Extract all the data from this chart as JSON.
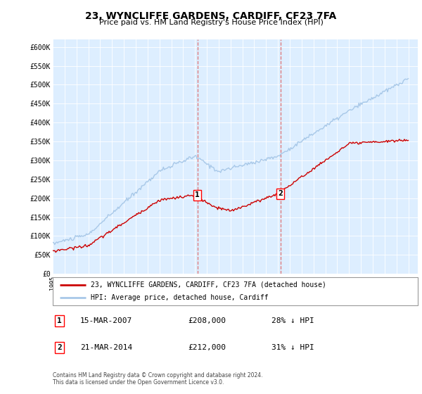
{
  "title": "23, WYNCLIFFE GARDENS, CARDIFF, CF23 7FA",
  "subtitle": "Price paid vs. HM Land Registry's House Price Index (HPI)",
  "y_ticks": [
    0,
    50000,
    100000,
    150000,
    200000,
    250000,
    300000,
    350000,
    400000,
    450000,
    500000,
    550000,
    600000
  ],
  "y_labels": [
    "£0",
    "£50K",
    "£100K",
    "£150K",
    "£200K",
    "£250K",
    "£300K",
    "£350K",
    "£400K",
    "£450K",
    "£500K",
    "£550K",
    "£600K"
  ],
  "hpi_color": "#a8c8e8",
  "price_color": "#cc0000",
  "marker1_year": 2007.2,
  "marker1_price": 208000,
  "marker2_year": 2014.2,
  "marker2_price": 212000,
  "vline_color": "#dd6666",
  "legend_entries": [
    "23, WYNCLIFFE GARDENS, CARDIFF, CF23 7FA (detached house)",
    "HPI: Average price, detached house, Cardiff"
  ],
  "transaction1": {
    "num": "1",
    "date": "15-MAR-2007",
    "price": "£208,000",
    "rel": "28% ↓ HPI"
  },
  "transaction2": {
    "num": "2",
    "date": "21-MAR-2014",
    "price": "£212,000",
    "rel": "31% ↓ HPI"
  },
  "footnote1": "Contains HM Land Registry data © Crown copyright and database right 2024.",
  "footnote2": "This data is licensed under the Open Government Licence v3.0.",
  "plot_bg_color": "#ddeeff",
  "fig_bg_color": "#ffffff"
}
